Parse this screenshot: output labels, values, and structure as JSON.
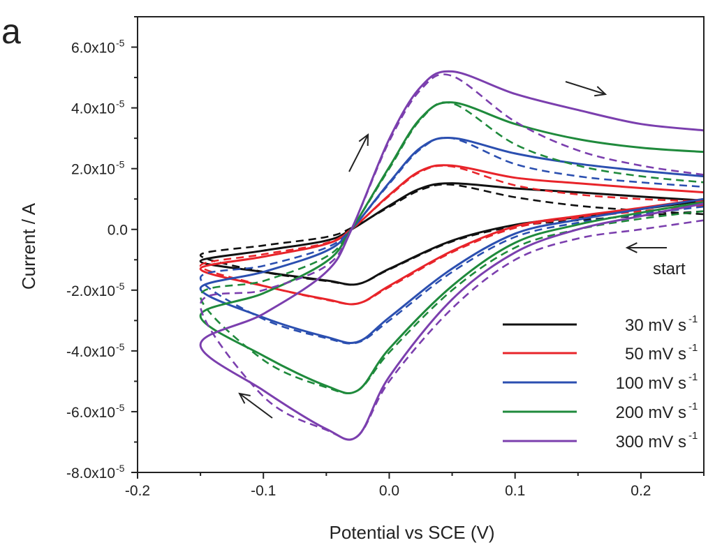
{
  "panel_label": "a",
  "chart_data": {
    "type": "line",
    "xlabel": "Potential vs SCE (V)",
    "ylabel": "Current / A",
    "xlim": [
      -0.2,
      0.25
    ],
    "ylim": [
      -8e-05,
      7e-05
    ],
    "grid": false,
    "legend_position": "bottom-right",
    "x_ticks": [
      {
        "value": -0.2,
        "label": "-0.2"
      },
      {
        "value": -0.1,
        "label": "-0.1"
      },
      {
        "value": 0.0,
        "label": "0.0"
      },
      {
        "value": 0.1,
        "label": "0.1"
      },
      {
        "value": 0.2,
        "label": "0.2"
      }
    ],
    "y_ticks": [
      {
        "value": 6e-05,
        "label": "6.0x10",
        "exp": "-5"
      },
      {
        "value": 4e-05,
        "label": "4.0x10",
        "exp": "-5"
      },
      {
        "value": 2e-05,
        "label": "2.0x10",
        "exp": "-5"
      },
      {
        "value": 0,
        "label": "0.0",
        "exp": ""
      },
      {
        "value": -2e-05,
        "label": "-2.0x10",
        "exp": "-5"
      },
      {
        "value": -4e-05,
        "label": "-4.0x10",
        "exp": "-5"
      },
      {
        "value": -6e-05,
        "label": "-6.0x10",
        "exp": "-5"
      },
      {
        "value": -8e-05,
        "label": "-8.0x10",
        "exp": "-5"
      }
    ],
    "annotations": [
      {
        "text": "start",
        "arrow": "left",
        "at": [
          0.215,
          -7e-06
        ]
      },
      {
        "text": "",
        "arrow": "up-right",
        "at": [
          -0.025,
          2.8e-05
        ]
      },
      {
        "text": "",
        "arrow": "right",
        "at": [
          0.15,
          4.6e-05
        ]
      },
      {
        "text": "",
        "arrow": "down-left",
        "at": [
          -0.11,
          -5.9e-05
        ]
      }
    ],
    "series": [
      {
        "name": "30 mV s",
        "unit_exp": "-1",
        "color": "#111111",
        "solid": {
          "x": [
            0.25,
            0.2,
            0.15,
            0.1,
            0.05,
            0.0,
            -0.025,
            -0.05,
            -0.1,
            -0.15,
            -0.1,
            -0.05,
            -0.03,
            0.0,
            0.025,
            0.05,
            0.1,
            0.15,
            0.2,
            0.25
          ],
          "y": [
            9.5e-06,
            6.7e-06,
            4e-06,
            1.5e-06,
            -3.7e-06,
            -1.3e-05,
            -1.8e-05,
            -1.68e-05,
            -1.4e-05,
            -1.05e-05,
            -7e-06,
            -3.7e-06,
            0,
            7.8e-06,
            1.35e-05,
            1.52e-05,
            1.35e-05,
            1.22e-05,
            1.08e-05,
            9.5e-06
          ]
        },
        "dashed": {
          "x": [
            0.25,
            0.2,
            0.15,
            0.1,
            0.05,
            0.0,
            -0.025,
            -0.05,
            -0.1,
            -0.15,
            -0.1,
            -0.05,
            -0.03,
            0.0,
            0.025,
            0.05,
            0.1,
            0.15,
            0.2,
            0.25
          ],
          "y": [
            6e-06,
            4.5e-06,
            3e-06,
            1e-06,
            -4e-06,
            -1.32e-05,
            -1.8e-05,
            -1.7e-05,
            -1.4e-05,
            -8.5e-06,
            -5.3e-06,
            -2.5e-06,
            5e-07,
            7.4e-06,
            1.3e-05,
            1.47e-05,
            1.06e-05,
            7.8e-06,
            6.2e-06,
            5e-06
          ]
        }
      },
      {
        "name": "50 mV s",
        "unit_exp": "-1",
        "color": "#e8242a",
        "solid": {
          "x": [
            0.25,
            0.2,
            0.15,
            0.1,
            0.05,
            0.0,
            -0.025,
            -0.05,
            -0.1,
            -0.15,
            -0.1,
            -0.05,
            -0.03,
            0.0,
            0.025,
            0.05,
            0.1,
            0.15,
            0.2,
            0.25
          ],
          "y": [
            1e-05,
            7.1e-06,
            4.4e-06,
            1e-06,
            -7.1e-06,
            -1.86e-05,
            -2.44e-05,
            -2.3e-05,
            -1.86e-05,
            -1.3e-05,
            -9e-06,
            -4.8e-06,
            0,
            1.13e-05,
            1.93e-05,
            2.1e-05,
            1.7e-05,
            1.52e-05,
            1.36e-05,
            1.22e-05
          ]
        },
        "dashed": {
          "x": [
            0.25,
            0.2,
            0.15,
            0.1,
            0.05,
            0.0,
            -0.025,
            -0.05,
            -0.1,
            -0.15,
            -0.1,
            -0.05,
            -0.03,
            0.0,
            0.025,
            0.05,
            0.1,
            0.15,
            0.2,
            0.25
          ],
          "y": [
            8e-06,
            6e-06,
            3.8e-06,
            5e-07,
            -7.5e-06,
            -1.9e-05,
            -2.44e-05,
            -2.32e-05,
            -1.85e-05,
            -1.2e-05,
            -8.2e-06,
            -4.5e-06,
            2e-07,
            1.1e-05,
            1.9e-05,
            2.07e-05,
            1.45e-05,
            1.15e-05,
            1e-05,
            9.2e-06
          ]
        }
      },
      {
        "name": "100 mV s",
        "unit_exp": "-1",
        "color": "#2b4fb0",
        "solid": {
          "x": [
            0.25,
            0.2,
            0.15,
            0.1,
            0.05,
            0.0,
            -0.025,
            -0.05,
            -0.1,
            -0.15,
            -0.1,
            -0.05,
            -0.03,
            0.0,
            0.025,
            0.05,
            0.1,
            0.15,
            0.2,
            0.25
          ],
          "y": [
            1e-05,
            6.7e-06,
            3.2e-06,
            -1.4e-06,
            -1.29e-05,
            -2.9e-05,
            -3.7e-05,
            -3.54e-05,
            -2.9e-05,
            -1.95e-05,
            -1.4e-05,
            -7.1e-06,
            0,
            1.54e-05,
            2.69e-05,
            3.01e-05,
            2.5e-05,
            2.16e-05,
            1.93e-05,
            1.75e-05
          ]
        },
        "dashed": {
          "x": [
            0.25,
            0.2,
            0.15,
            0.1,
            0.05,
            0.0,
            -0.025,
            -0.05,
            -0.1,
            -0.15,
            -0.1,
            -0.05,
            -0.03,
            0.0,
            0.025,
            0.05,
            0.1,
            0.15,
            0.2,
            0.25
          ],
          "y": [
            7.5e-06,
            5e-06,
            2.2e-06,
            -2.5e-06,
            -1.4e-05,
            -3e-05,
            -3.72e-05,
            -3.58e-05,
            -2.95e-05,
            -1.6e-05,
            -1.2e-05,
            -6e-06,
            2e-07,
            1.5e-05,
            2.65e-05,
            3e-05,
            2.15e-05,
            1.75e-05,
            1.55e-05,
            1.4e-05
          ]
        }
      },
      {
        "name": "200 mV s",
        "unit_exp": "-1",
        "color": "#1f8a3c",
        "solid": {
          "x": [
            0.25,
            0.2,
            0.15,
            0.1,
            0.05,
            0.0,
            -0.025,
            -0.05,
            -0.1,
            -0.15,
            -0.1,
            -0.05,
            -0.03,
            0.0,
            0.025,
            0.05,
            0.1,
            0.15,
            0.2,
            0.25
          ],
          "y": [
            9e-06,
            5.5e-06,
            1.6e-06,
            -4.4e-06,
            -1.86e-05,
            -3.93e-05,
            -5.3e-05,
            -5.15e-05,
            -4.16e-05,
            -2.85e-05,
            -2.1e-05,
            -1.06e-05,
            0,
            2.05e-05,
            3.66e-05,
            4.18e-05,
            3.47e-05,
            2.97e-05,
            2.69e-05,
            2.55e-05
          ]
        },
        "dashed": {
          "x": [
            0.25,
            0.2,
            0.15,
            0.1,
            0.05,
            0.0,
            -0.025,
            -0.05,
            -0.1,
            -0.15,
            -0.1,
            -0.05,
            -0.03,
            0.0,
            0.025,
            0.05,
            0.1,
            0.15,
            0.2,
            0.25
          ],
          "y": [
            6e-06,
            3.5e-06,
            0.0,
            -6e-06,
            -2e-05,
            -4.05e-05,
            -5.3e-05,
            -5.2e-05,
            -4.3e-05,
            -2.2e-05,
            -1.7e-05,
            -9e-06,
            2e-07,
            2e-05,
            3.62e-05,
            4.15e-05,
            2.8e-05,
            2.1e-05,
            1.75e-05,
            1.55e-05
          ]
        }
      },
      {
        "name": "300 mV s",
        "unit_exp": "-1",
        "color": "#7b3fae",
        "solid": {
          "x": [
            0.25,
            0.2,
            0.15,
            0.1,
            0.05,
            0.0,
            -0.025,
            -0.05,
            -0.1,
            -0.15,
            -0.1,
            -0.05,
            -0.03,
            0.0,
            0.025,
            0.05,
            0.1,
            0.15,
            0.2,
            0.25
          ],
          "y": [
            8.5e-06,
            4.4e-06,
            0.0,
            -7.6e-06,
            -2.3e-05,
            -4.85e-05,
            -6.8e-05,
            -6.57e-05,
            -5.3e-05,
            -3.8e-05,
            -2.78e-05,
            -1.4e-05,
            0,
            2.97e-05,
            4.69e-05,
            5.2e-05,
            4.46e-05,
            3.93e-05,
            3.47e-05,
            3.26e-05
          ]
        },
        "dashed": {
          "x": [
            0.25,
            0.2,
            0.15,
            0.1,
            0.05,
            0.0,
            -0.025,
            -0.05,
            -0.1,
            -0.15,
            -0.1,
            -0.05,
            -0.03,
            0.0,
            0.025,
            0.05,
            0.1,
            0.15,
            0.2,
            0.25
          ],
          "y": [
            3e-06,
            0.0,
            -3e-06,
            -1e-05,
            -2.6e-05,
            -5e-05,
            -6.8e-05,
            -6.6e-05,
            -5.5e-05,
            -2.5e-05,
            -2e-05,
            -1.2e-05,
            2e-07,
            2.9e-05,
            4.6e-05,
            5.05e-05,
            3.55e-05,
            2.6e-05,
            2.1e-05,
            1.8e-05
          ]
        }
      }
    ]
  }
}
